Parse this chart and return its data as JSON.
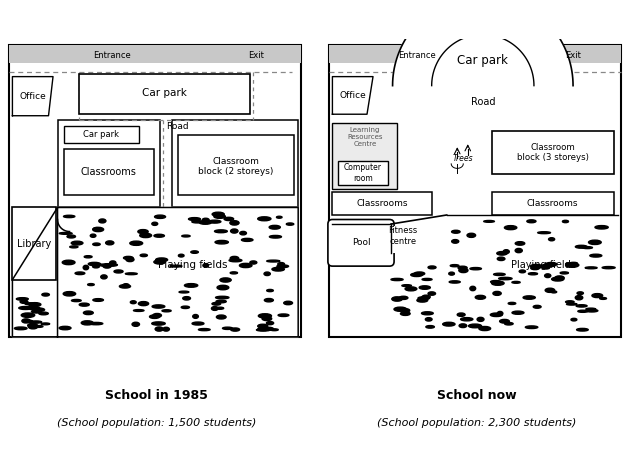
{
  "left_title": "School in 1985",
  "left_subtitle": "(School population: 1,500 students)",
  "right_title": "School now",
  "right_subtitle": "(School population: 2,300 students)",
  "bg_color": "#ffffff"
}
